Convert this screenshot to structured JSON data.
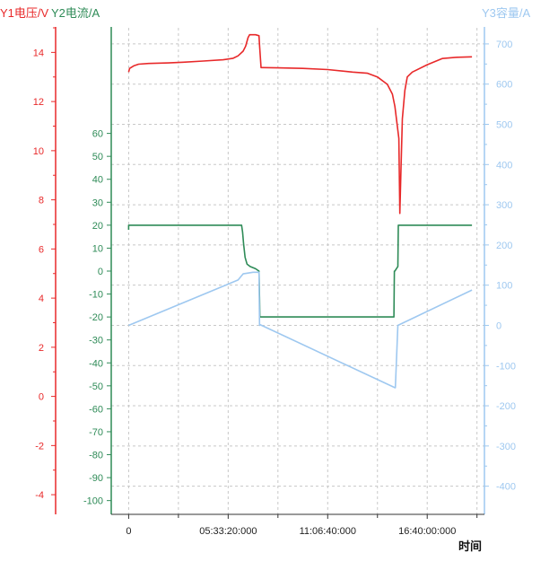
{
  "header": {
    "y1_label": "Y1电压/V",
    "separator": "/",
    "y2_label": "Y2电流/A",
    "y3_label": "Y3容量/A",
    "x_label": "时间"
  },
  "colors": {
    "y1": "#e8292a",
    "y2": "#2e8b57",
    "y3": "#9ec8f0",
    "grid": "#c8c8c8",
    "axis": "#333333"
  },
  "chart_data": {
    "type": "line",
    "xlabel": "时间",
    "x_ticks": [
      {
        "value": 0,
        "label": "0"
      },
      {
        "value": 20000,
        "label": "05:33:20:000"
      },
      {
        "value": 40000,
        "label": "11:06:40:000"
      },
      {
        "value": 60000,
        "label": "16:40:00:000"
      }
    ],
    "xlim": [
      -3500,
      71500
    ],
    "grid": true,
    "axes": [
      {
        "id": "y1",
        "label": "Y1电压/V",
        "ylim": [
          -4.8,
          15.0
        ],
        "ticks": [
          -4,
          -2,
          0,
          2,
          4,
          6,
          8,
          10,
          12,
          14
        ]
      },
      {
        "id": "y2",
        "label": "Y2电流/A",
        "ylim": [
          -106,
          106
        ],
        "ticks": [
          -100,
          -90,
          -80,
          -70,
          -60,
          -50,
          -40,
          -30,
          -20,
          -10,
          0,
          10,
          20,
          30,
          40,
          50,
          60
        ]
      },
      {
        "id": "y3",
        "label": "Y3容量/A",
        "ylim": [
          -470,
          740
        ],
        "ticks": [
          -400,
          -300,
          -200,
          -100,
          0,
          100,
          200,
          300,
          400,
          500,
          600,
          700
        ]
      }
    ],
    "series": [
      {
        "name": "Y1电压/V",
        "axis": "y1",
        "x": [
          0,
          200,
          1000,
          2000,
          4000,
          8000,
          11000,
          15000,
          19000,
          21000,
          22000,
          23000,
          23500,
          24000,
          24300,
          25500,
          26200,
          26300,
          26600,
          27000,
          30000,
          35000,
          40000,
          45000,
          48000,
          50000,
          52000,
          53000,
          53500,
          54000,
          54300,
          54500,
          54700,
          55000,
          55500,
          56000,
          57000,
          60000,
          63000,
          66000,
          69000
        ],
        "values": [
          13.2,
          13.35,
          13.45,
          13.52,
          13.55,
          13.57,
          13.6,
          13.65,
          13.7,
          13.76,
          13.86,
          14.05,
          14.25,
          14.6,
          14.72,
          14.72,
          14.68,
          14.3,
          13.38,
          13.38,
          13.37,
          13.35,
          13.3,
          13.2,
          13.15,
          13.0,
          12.7,
          12.3,
          11.8,
          11.0,
          10.5,
          7.45,
          9.0,
          11.3,
          12.45,
          13.0,
          13.2,
          13.5,
          13.75,
          13.8,
          13.82
        ]
      },
      {
        "name": "Y2电流/A",
        "axis": "y2",
        "x": [
          0,
          0,
          22700,
          22900,
          23100,
          23400,
          23800,
          24400,
          25500,
          26200,
          26300,
          26350,
          53300,
          53400,
          53500,
          53800,
          54100,
          54200,
          69000
        ],
        "values": [
          18,
          20,
          20,
          17,
          12,
          6,
          3,
          2,
          1,
          0,
          -12,
          -20,
          -20,
          0,
          0,
          1,
          2,
          20,
          20
        ]
      },
      {
        "name": "Y3容量/A",
        "axis": "y3",
        "x": [
          0,
          22000,
          23000,
          25000,
          26200,
          26300,
          26400,
          53500,
          53600,
          54100,
          69000
        ],
        "values": [
          0,
          113,
          128,
          132,
          132,
          0,
          2,
          -155,
          -155,
          0,
          88
        ]
      }
    ]
  }
}
